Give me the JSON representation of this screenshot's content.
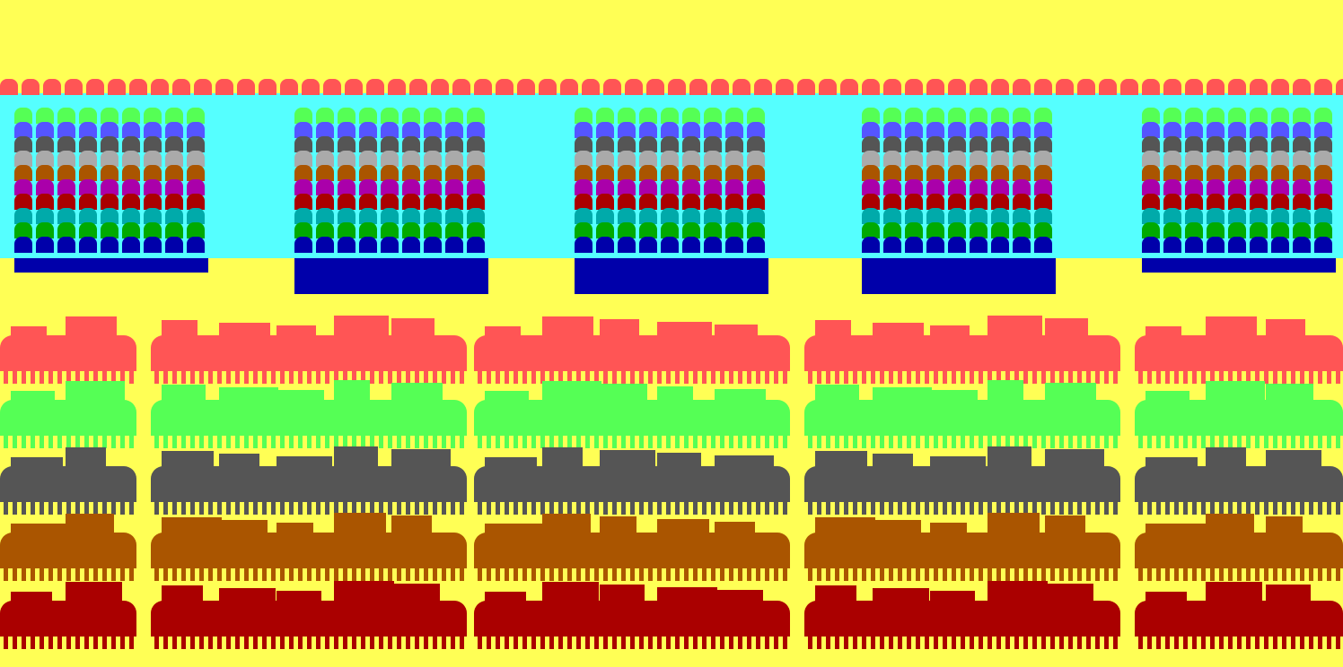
{
  "game": {
    "palette": {
      "background": "#ffff55",
      "curtain": "#55ffff",
      "red": "#ff5555",
      "green": "#55ff55",
      "blue": "#5555ff",
      "dark_gray": "#555555",
      "light_gray": "#aaaaaa",
      "brown": "#aa5500",
      "magenta": "#aa00aa",
      "dark_red": "#aa0000",
      "teal": "#00aaaa",
      "dark_green": "#00aa00",
      "dark_blue": "#0000aa"
    },
    "alien_formation": {
      "row_colors": [
        "red",
        "curtain",
        "green",
        "blue",
        "dark_gray",
        "light_gray",
        "brown",
        "magenta",
        "dark_red",
        "teal",
        "dark_green",
        "dark_blue"
      ],
      "columns": 5,
      "aliens_per_column": 9
    },
    "skyline_rows": [
      {
        "color": "red"
      },
      {
        "color": "green"
      },
      {
        "color": "dark_gray"
      },
      {
        "color": "brown"
      },
      {
        "color": "dark_red"
      }
    ]
  }
}
